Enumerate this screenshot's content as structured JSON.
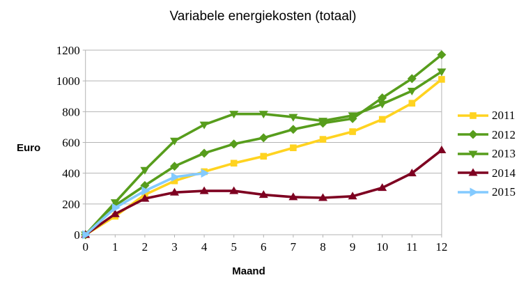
{
  "title": "Variabele energiekosten (totaal)",
  "y_axis": {
    "label": "Euro",
    "min": 0,
    "max": 1200,
    "step": 200,
    "tick_values": [
      0,
      200,
      400,
      600,
      800,
      1000,
      1200
    ],
    "tick_labels": [
      "0",
      "200",
      "400",
      "600",
      "800",
      "1000",
      "1200"
    ]
  },
  "x_axis": {
    "label": "Maand",
    "min": 0,
    "max": 12,
    "tick_values": [
      0,
      1,
      2,
      3,
      4,
      5,
      6,
      7,
      8,
      9,
      10,
      11,
      12
    ],
    "tick_labels": [
      "0",
      "1",
      "2",
      "3",
      "4",
      "5",
      "6",
      "7",
      "8",
      "9",
      "10",
      "11",
      "12"
    ]
  },
  "style_colors": {
    "grid": "#B3B3B3",
    "axis": "#B3B3B3",
    "text": "#000000",
    "background": "#FFFFFF"
  },
  "chart_data": {
    "type": "line",
    "title": "Variabele energiekosten (totaal)",
    "xlabel": "Maand",
    "ylabel": "Euro",
    "xlim": [
      0,
      12
    ],
    "ylim": [
      0,
      1200
    ],
    "grid": true,
    "legend_position": "right",
    "x": [
      0,
      1,
      2,
      3,
      4,
      5,
      6,
      7,
      8,
      9,
      10,
      11,
      12
    ],
    "series": [
      {
        "name": "2011",
        "color": "#FFD320",
        "marker": "square",
        "values": [
          0,
          120,
          260,
          350,
          410,
          465,
          510,
          565,
          620,
          670,
          750,
          855,
          1010
        ]
      },
      {
        "name": "2012",
        "color": "#579D1C",
        "marker": "diamond",
        "values": [
          0,
          190,
          320,
          445,
          530,
          590,
          630,
          685,
          725,
          755,
          890,
          1015,
          1170
        ]
      },
      {
        "name": "2013",
        "color": "#579D1C",
        "marker": "triangle-down",
        "values": [
          0,
          210,
          420,
          610,
          715,
          785,
          785,
          765,
          740,
          775,
          850,
          935,
          1060
        ]
      },
      {
        "name": "2014",
        "color": "#7E0021",
        "marker": "triangle-up",
        "values": [
          0,
          135,
          235,
          275,
          285,
          285,
          260,
          245,
          240,
          250,
          305,
          400,
          550
        ]
      },
      {
        "name": "2015",
        "color": "#83CAFF",
        "marker": "arrow-right",
        "values": [
          0,
          175,
          285,
          375,
          400
        ]
      }
    ]
  }
}
